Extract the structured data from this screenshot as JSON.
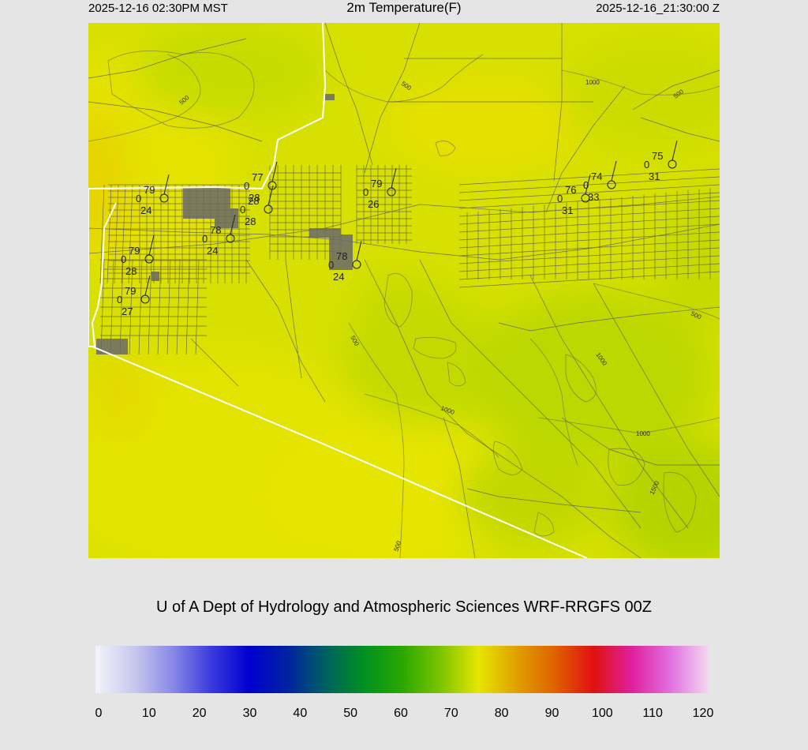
{
  "header": {
    "local_time": "2025-12-16 02:30PM MST",
    "title": "2m Temperature(F)",
    "utc_time": "2025-12-16_21:30:00 Z"
  },
  "map": {
    "contours": [
      "500",
      "500",
      "1000",
      "500",
      "500",
      "1000",
      "1000",
      "500",
      "1000",
      "1500",
      "500"
    ],
    "stations": [
      {
        "temp": "79",
        "wind": "0",
        "dew": "24"
      },
      {
        "temp": "77",
        "wind": "0",
        "dew": "28"
      },
      {
        "temp": "28",
        "wind": "0",
        "dew": "28"
      },
      {
        "temp": "78",
        "wind": "0",
        "dew": "24"
      },
      {
        "temp": "79",
        "wind": "0",
        "dew": "28"
      },
      {
        "temp": "79",
        "wind": "0",
        "dew": "27"
      },
      {
        "temp": "79",
        "wind": "0",
        "dew": "26"
      },
      {
        "temp": "78",
        "wind": "0",
        "dew": "24"
      },
      {
        "temp": "76",
        "wind": "0",
        "dew": "31"
      },
      {
        "temp": "74",
        "wind": "0",
        "dew": "33"
      },
      {
        "temp": "75",
        "wind": "0",
        "dew": "31"
      }
    ]
  },
  "credit": "U of A Dept of Hydrology and Atmospheric Sciences WRF-RRGFS 00Z",
  "colorbar": {
    "ticks": [
      "0",
      "10",
      "20",
      "30",
      "40",
      "50",
      "60",
      "70",
      "80",
      "90",
      "100",
      "110",
      "120"
    ],
    "colors": [
      "#f4f4f8",
      "#c8c8ee",
      "#8a8ae6",
      "#3c3cdc",
      "#0000d2",
      "#0022a0",
      "#006060",
      "#009020",
      "#2aa800",
      "#7cc400",
      "#e6e600",
      "#e0a000",
      "#e06000",
      "#e01010",
      "#e020a0",
      "#e070e0",
      "#f4d8f0"
    ]
  }
}
